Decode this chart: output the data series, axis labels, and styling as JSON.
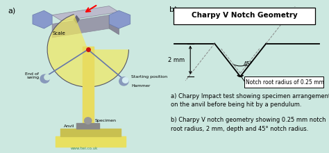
{
  "bg_color": "#cce8e0",
  "left_bg": "#cde8e0",
  "right_bg": "#d5edf2",
  "title": "Charpy V Notch Geometry",
  "label_a": "a)",
  "label_b": "b)",
  "dim_label": "2 mm",
  "angle_label": "45°",
  "notch_label": "Notch root radius of 0.25 mm",
  "caption_a": "a) Charpy Impact test showing specimen arrangement\non the anvil before being hit by a pendulum.",
  "caption_b": "b) Charpy V notch geometry showing 0.25 mm notch\nroot radius, 2 mm, depth and 45° notch radius.",
  "title_fontsize": 7.5,
  "caption_fontsize": 6.0,
  "label_fontsize": 8,
  "dim_fontsize": 6,
  "notch_label_fontsize": 5.5,
  "watermark": "www.twi.co.uk",
  "scale_label": "Scale",
  "starting_label": "Starting position",
  "end_swing_label": "End of\nswing",
  "hammer_label": "Hammer",
  "specimen_label": "Specimen",
  "anvil_label": "Anvil"
}
